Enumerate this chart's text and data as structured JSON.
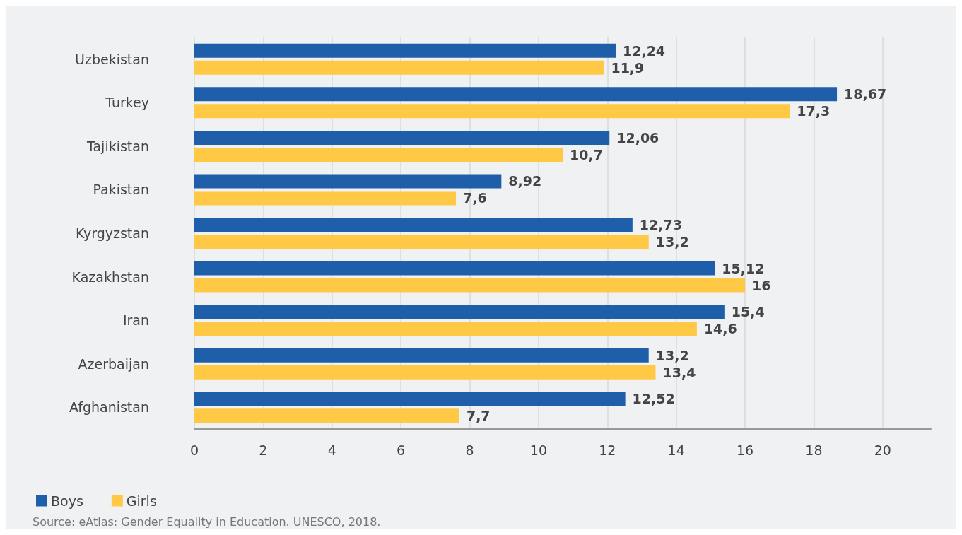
{
  "chart_data": {
    "type": "bar",
    "orientation": "horizontal",
    "categories": [
      "Uzbekistan",
      "Turkey",
      "Tajikistan",
      "Pakistan",
      "Kyrgyzstan",
      "Kazakhstan",
      "Iran",
      "Azerbaijan",
      "Afghanistan"
    ],
    "series": [
      {
        "name": "Boys",
        "color": "#1f5faa",
        "values": [
          12.24,
          18.67,
          12.06,
          8.92,
          12.73,
          15.12,
          15.4,
          13.2,
          12.52
        ],
        "value_labels": [
          "12,24",
          "18,67",
          "12,06",
          "8,92",
          "12,73",
          "15,12",
          "15,4",
          "13,2",
          "12,52"
        ]
      },
      {
        "name": "Girls",
        "color": "#ffc845",
        "values": [
          11.9,
          17.3,
          10.7,
          7.6,
          13.2,
          16,
          14.6,
          13.4,
          7.7
        ],
        "value_labels": [
          "11,9",
          "17,3",
          "10,7",
          "7,6",
          "13,2",
          "16",
          "14,6",
          "13,4",
          "7,7"
        ]
      }
    ],
    "xlim": [
      0,
      21.4
    ],
    "xticks": [
      0,
      2,
      4,
      6,
      8,
      10,
      12,
      14,
      16,
      18,
      20
    ],
    "grid": "x",
    "legend": "bottom left",
    "annotations": [
      "Source: eAtlas: Gender Equality in Education. UNESCO, 2018."
    ]
  }
}
